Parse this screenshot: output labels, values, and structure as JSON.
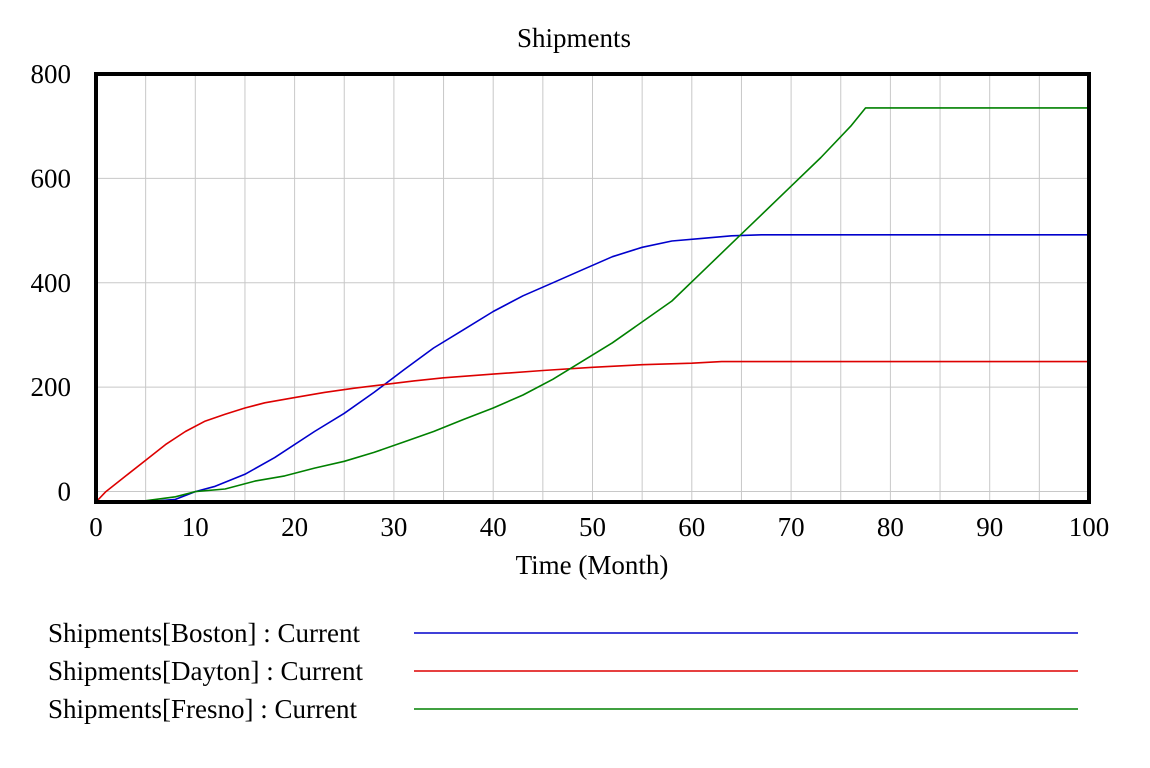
{
  "chart_data": {
    "type": "line",
    "title": "Shipments",
    "xlabel": "Time (Month)",
    "ylabel": "",
    "xlim": [
      0,
      100
    ],
    "ylim": [
      -20,
      800
    ],
    "x_ticks": [
      0,
      10,
      20,
      30,
      40,
      50,
      60,
      70,
      80,
      90,
      100
    ],
    "y_ticks": [
      0,
      200,
      400,
      600,
      800
    ],
    "grid": true,
    "legend_position": "bottom",
    "series": [
      {
        "name": "Shipments[Boston] : Current",
        "color": "#0000cc",
        "x": [
          0,
          4,
          6,
          8,
          10,
          12,
          15,
          18,
          22,
          25,
          28,
          31,
          34,
          37,
          40,
          43,
          46,
          49,
          52,
          55,
          58,
          61,
          64,
          67,
          70,
          80,
          90,
          100
        ],
        "y": [
          -20,
          -20,
          -18,
          -15,
          0,
          10,
          33,
          65,
          115,
          150,
          190,
          233,
          275,
          310,
          345,
          375,
          400,
          425,
          450,
          468,
          480,
          485,
          490,
          492,
          492,
          492,
          492,
          492
        ]
      },
      {
        "name": "Shipments[Dayton] : Current",
        "color": "#dd0000",
        "x": [
          0,
          1,
          3,
          5,
          7,
          9,
          11,
          13,
          15,
          17,
          20,
          23,
          26,
          29,
          32,
          35,
          40,
          45,
          50,
          55,
          60,
          63,
          70,
          80,
          90,
          100
        ],
        "y": [
          -20,
          0,
          30,
          60,
          90,
          115,
          135,
          148,
          160,
          170,
          180,
          190,
          198,
          205,
          212,
          218,
          225,
          232,
          238,
          243,
          246,
          249,
          249,
          249,
          249,
          249
        ]
      },
      {
        "name": "Shipments[Fresno] : Current",
        "color": "#008000",
        "x": [
          0,
          4,
          6,
          8,
          10,
          13,
          16,
          19,
          22,
          25,
          28,
          31,
          34,
          37,
          40,
          43,
          46,
          49,
          52,
          55,
          58,
          61,
          64,
          67,
          70,
          73,
          76,
          77.5,
          80,
          90,
          100
        ],
        "y": [
          -20,
          -20,
          -15,
          -10,
          0,
          5,
          20,
          30,
          45,
          58,
          75,
          95,
          115,
          138,
          160,
          185,
          215,
          250,
          285,
          325,
          365,
          420,
          475,
          530,
          585,
          640,
          700,
          735,
          735,
          735,
          735
        ]
      }
    ]
  }
}
